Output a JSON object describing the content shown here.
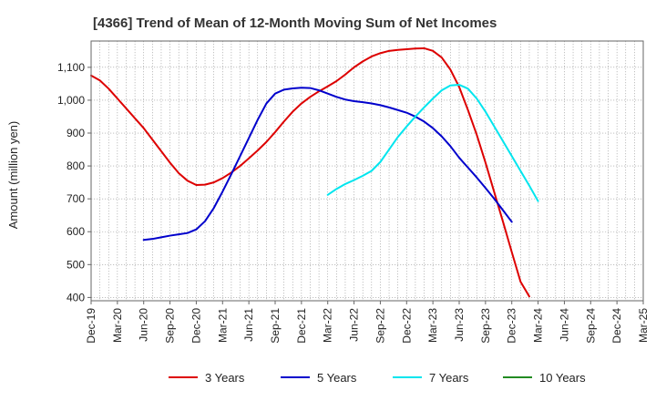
{
  "chart_data": {
    "type": "line",
    "title": "[4366]  Trend of Mean of 12-Month Moving Sum of Net Incomes",
    "ylabel": "Amount (million yen)",
    "xlabel": "",
    "ylim": [
      390,
      1180
    ],
    "yticks": [
      400,
      500,
      600,
      700,
      800,
      900,
      "1,000",
      "1,100"
    ],
    "ytick_values": [
      400,
      500,
      600,
      700,
      800,
      900,
      1000,
      1100
    ],
    "xticks": [
      "Dec-19",
      "Mar-20",
      "Jun-20",
      "Sep-20",
      "Dec-20",
      "Mar-21",
      "Jun-21",
      "Sep-21",
      "Dec-21",
      "Mar-22",
      "Jun-22",
      "Sep-22",
      "Dec-22",
      "Mar-23",
      "Jun-23",
      "Sep-23",
      "Dec-23",
      "Mar-24",
      "Jun-24",
      "Sep-24",
      "Dec-24",
      "Mar-25"
    ],
    "grid": true,
    "legend_position": "bottom",
    "series": [
      {
        "name": "3 Years",
        "color": "#dd0000",
        "points": [
          [
            0,
            1075
          ],
          [
            1,
            1060
          ],
          [
            2,
            1035
          ],
          [
            3,
            1005
          ],
          [
            4,
            975
          ],
          [
            5,
            945
          ],
          [
            6,
            915
          ],
          [
            7,
            880
          ],
          [
            8,
            845
          ],
          [
            9,
            810
          ],
          [
            10,
            778
          ],
          [
            11,
            755
          ],
          [
            12,
            742
          ],
          [
            13,
            743
          ],
          [
            14,
            750
          ],
          [
            15,
            763
          ],
          [
            16,
            780
          ],
          [
            17,
            800
          ],
          [
            18,
            823
          ],
          [
            19,
            847
          ],
          [
            20,
            873
          ],
          [
            21,
            903
          ],
          [
            22,
            935
          ],
          [
            23,
            965
          ],
          [
            24,
            990
          ],
          [
            25,
            1010
          ],
          [
            26,
            1027
          ],
          [
            27,
            1042
          ],
          [
            28,
            1058
          ],
          [
            29,
            1078
          ],
          [
            30,
            1100
          ],
          [
            31,
            1118
          ],
          [
            32,
            1133
          ],
          [
            33,
            1143
          ],
          [
            34,
            1150
          ],
          [
            35,
            1153
          ],
          [
            36,
            1155
          ],
          [
            37,
            1157
          ],
          [
            38,
            1158
          ],
          [
            39,
            1150
          ],
          [
            40,
            1130
          ],
          [
            41,
            1093
          ],
          [
            42,
            1040
          ],
          [
            43,
            970
          ],
          [
            44,
            895
          ],
          [
            45,
            810
          ],
          [
            46,
            720
          ],
          [
            47,
            630
          ],
          [
            48,
            538
          ],
          [
            49,
            448
          ],
          [
            50,
            403
          ]
        ]
      },
      {
        "name": "5 Years",
        "color": "#0000cc",
        "points": [
          [
            6,
            575
          ],
          [
            7,
            578
          ],
          [
            8,
            583
          ],
          [
            9,
            588
          ],
          [
            10,
            592
          ],
          [
            11,
            596
          ],
          [
            12,
            607
          ],
          [
            13,
            632
          ],
          [
            14,
            672
          ],
          [
            15,
            722
          ],
          [
            16,
            775
          ],
          [
            17,
            830
          ],
          [
            18,
            885
          ],
          [
            19,
            940
          ],
          [
            20,
            990
          ],
          [
            21,
            1020
          ],
          [
            22,
            1032
          ],
          [
            23,
            1036
          ],
          [
            24,
            1038
          ],
          [
            25,
            1037
          ],
          [
            26,
            1030
          ],
          [
            27,
            1020
          ],
          [
            28,
            1010
          ],
          [
            29,
            1002
          ],
          [
            30,
            997
          ],
          [
            31,
            994
          ],
          [
            32,
            990
          ],
          [
            33,
            985
          ],
          [
            34,
            978
          ],
          [
            35,
            970
          ],
          [
            36,
            962
          ],
          [
            37,
            950
          ],
          [
            38,
            935
          ],
          [
            39,
            915
          ],
          [
            40,
            890
          ],
          [
            41,
            860
          ],
          [
            42,
            825
          ],
          [
            43,
            795
          ],
          [
            44,
            765
          ],
          [
            45,
            733
          ],
          [
            46,
            700
          ],
          [
            47,
            665
          ],
          [
            48,
            630
          ]
        ]
      },
      {
        "name": "7 Years",
        "color": "#00e5ee",
        "points": [
          [
            27,
            712
          ],
          [
            28,
            730
          ],
          [
            29,
            745
          ],
          [
            30,
            757
          ],
          [
            31,
            770
          ],
          [
            32,
            785
          ],
          [
            33,
            812
          ],
          [
            34,
            850
          ],
          [
            35,
            888
          ],
          [
            36,
            920
          ],
          [
            37,
            950
          ],
          [
            38,
            978
          ],
          [
            39,
            1005
          ],
          [
            40,
            1030
          ],
          [
            41,
            1045
          ],
          [
            42,
            1047
          ],
          [
            43,
            1035
          ],
          [
            44,
            1005
          ],
          [
            45,
            965
          ],
          [
            46,
            920
          ],
          [
            47,
            875
          ],
          [
            48,
            830
          ],
          [
            49,
            785
          ],
          [
            50,
            740
          ],
          [
            51,
            693
          ]
        ]
      },
      {
        "name": "10 Years",
        "color": "#228b22",
        "points": []
      }
    ]
  }
}
